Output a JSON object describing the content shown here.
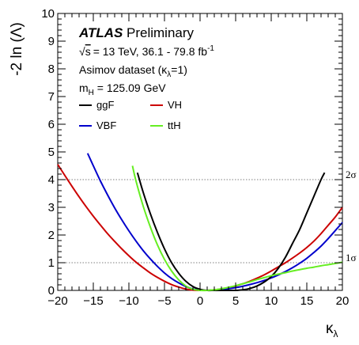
{
  "chart_data": {
    "type": "line",
    "ylabel": "-2 ln (Λ)",
    "xlabel": "κ",
    "xlabel_sub": "λ",
    "xlim": [
      -20,
      20
    ],
    "ylim": [
      0,
      10
    ],
    "x_ticks": [
      "−20",
      "−15",
      "−10",
      "−5",
      "0",
      "5",
      "10",
      "15",
      "20"
    ],
    "y_ticks": [
      "0",
      "1",
      "2",
      "3",
      "4",
      "5",
      "6",
      "7",
      "8",
      "9",
      "10"
    ],
    "sigma_lines": [
      {
        "y": 1,
        "label": "1σ"
      },
      {
        "y": 4,
        "label": "2σ"
      }
    ],
    "annotations": {
      "atlas": "ATLAS",
      "preliminary": "Preliminary",
      "sqrt": "√",
      "energy_s": "s",
      "energy": "= 13 TeV, 36.1 - 79.8 fb",
      "energy_sup": "-1",
      "asimov": "Asimov dataset (κ",
      "asimov_sub": "λ",
      "asimov_end": "=1)",
      "mass": "m",
      "mass_sub": "H",
      "mass_end": " = 125.09 GeV"
    },
    "legend_placement": "top-left",
    "series": [
      {
        "name": "ggF",
        "color": "#000000",
        "x": [
          -8.8,
          -8,
          -7,
          -6,
          -5,
          -4,
          -3,
          -2,
          -1,
          0,
          1,
          2,
          3,
          4,
          5,
          6,
          7,
          8,
          9,
          10,
          11,
          12,
          13,
          14,
          15,
          16,
          17,
          17.5
        ],
        "y": [
          4.25,
          3.55,
          2.78,
          2.1,
          1.5,
          1.0,
          0.62,
          0.33,
          0.14,
          0.04,
          0.0,
          0.0,
          0.0,
          0.0,
          0.0,
          0.02,
          0.07,
          0.16,
          0.3,
          0.5,
          0.8,
          1.2,
          1.7,
          2.2,
          2.8,
          3.4,
          4.0,
          4.25
        ]
      },
      {
        "name": "VH",
        "color": "#cc0000",
        "x": [
          -20,
          -19,
          -18,
          -17,
          -16,
          -15,
          -14,
          -13,
          -12,
          -11,
          -10,
          -9,
          -8,
          -7,
          -6,
          -5,
          -4,
          -3,
          -2,
          -1,
          0,
          1,
          2,
          3,
          4,
          5,
          6,
          7,
          8,
          9,
          10,
          11,
          12,
          13,
          14,
          15,
          16,
          17,
          18,
          19,
          20
        ],
        "y": [
          4.55,
          4.15,
          3.76,
          3.38,
          3.02,
          2.68,
          2.36,
          2.05,
          1.77,
          1.5,
          1.25,
          1.02,
          0.82,
          0.63,
          0.47,
          0.33,
          0.21,
          0.12,
          0.05,
          0.01,
          0.0,
          0.0,
          0.02,
          0.05,
          0.1,
          0.16,
          0.24,
          0.33,
          0.44,
          0.56,
          0.7,
          0.85,
          1.0,
          1.17,
          1.35,
          1.55,
          1.78,
          2.05,
          2.35,
          2.65,
          3.0
        ]
      },
      {
        "name": "VBF",
        "color": "#0000cc",
        "x": [
          -15.8,
          -15,
          -14,
          -13,
          -12,
          -11,
          -10,
          -9,
          -8,
          -7,
          -6,
          -5,
          -4,
          -3,
          -2,
          -1,
          0,
          1,
          2,
          3,
          4,
          5,
          6,
          7,
          8,
          9,
          10,
          11,
          12,
          13,
          14,
          15,
          16,
          17,
          18,
          19,
          20
        ],
        "y": [
          4.95,
          4.5,
          3.95,
          3.45,
          2.98,
          2.55,
          2.15,
          1.78,
          1.44,
          1.14,
          0.87,
          0.63,
          0.43,
          0.27,
          0.14,
          0.05,
          0.01,
          0.0,
          0.01,
          0.03,
          0.06,
          0.1,
          0.15,
          0.21,
          0.28,
          0.36,
          0.45,
          0.56,
          0.68,
          0.82,
          0.98,
          1.16,
          1.37,
          1.6,
          1.87,
          2.16,
          2.45
        ]
      },
      {
        "name": "ttH",
        "color": "#66ee22",
        "x": [
          -9.5,
          -9,
          -8,
          -7,
          -6,
          -5,
          -4,
          -3,
          -2,
          -1,
          0,
          1,
          2,
          3,
          4,
          5,
          6,
          7,
          8,
          9,
          10,
          11,
          12,
          13,
          14,
          15,
          16,
          17,
          18,
          19,
          20
        ],
        "y": [
          4.5,
          3.95,
          3.05,
          2.3,
          1.65,
          1.12,
          0.7,
          0.38,
          0.16,
          0.04,
          0.0,
          0.0,
          0.02,
          0.06,
          0.11,
          0.17,
          0.24,
          0.31,
          0.39,
          0.46,
          0.53,
          0.59,
          0.64,
          0.7,
          0.75,
          0.8,
          0.84,
          0.89,
          0.93,
          0.97,
          1.02
        ]
      }
    ]
  }
}
